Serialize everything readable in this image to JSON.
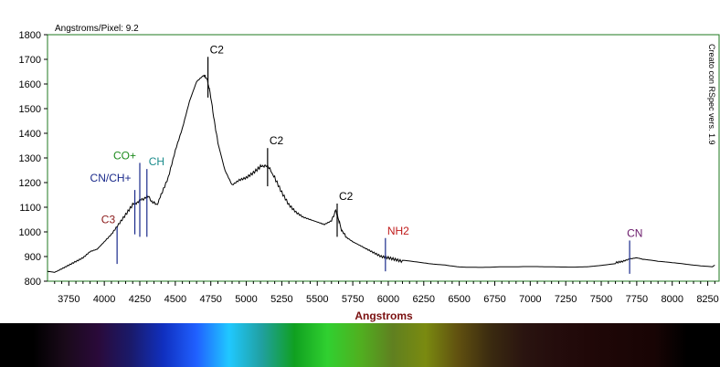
{
  "header": {
    "dispersion": "Angstroms/Pixel: 9.2"
  },
  "credit": "Creato con RSpec vers. 1.9",
  "colors": {
    "frame": "#1f7a1f",
    "trace": "#000000",
    "axis_title": "#7a1010"
  },
  "chart_data": {
    "type": "line",
    "title": "",
    "xlabel": "Angstroms",
    "ylabel": "",
    "xlim": [
      3600,
      8330
    ],
    "ylim": [
      800,
      1800
    ],
    "x_ticks": [
      3750,
      4000,
      4250,
      4500,
      4750,
      5000,
      5250,
      5500,
      5750,
      6000,
      6250,
      6500,
      6750,
      7000,
      7250,
      7500,
      7750,
      8000,
      8250
    ],
    "y_ticks": [
      800,
      900,
      1000,
      1100,
      1200,
      1300,
      1400,
      1500,
      1600,
      1700,
      1800
    ],
    "grid": false,
    "series": [
      {
        "x": [
          3600,
          3650,
          3700,
          3750,
          3800,
          3850,
          3900,
          3950,
          4000,
          4050,
          4100,
          4150,
          4200,
          4230,
          4260,
          4290,
          4310,
          4340,
          4370,
          4400,
          4450,
          4500,
          4550,
          4600,
          4650,
          4700,
          4720,
          4740,
          4770,
          4800,
          4850,
          4900,
          4950,
          5000,
          5050,
          5100,
          5130,
          5160,
          5200,
          5250,
          5300,
          5350,
          5400,
          5450,
          5500,
          5550,
          5600,
          5630,
          5650,
          5670,
          5700,
          5750,
          5800,
          5850,
          5900,
          5950,
          6000,
          6050,
          6100,
          6200,
          6300,
          6400,
          6500,
          6600,
          6700,
          6800,
          6900,
          7000,
          7100,
          7200,
          7300,
          7400,
          7500,
          7600,
          7650,
          7700,
          7750,
          7800,
          7900,
          8000,
          8100,
          8200,
          8300
        ],
        "y": [
          840,
          836,
          850,
          865,
          880,
          895,
          920,
          930,
          960,
          990,
          1030,
          1070,
          1110,
          1120,
          1130,
          1140,
          1145,
          1120,
          1110,
          1150,
          1220,
          1330,
          1420,
          1530,
          1610,
          1635,
          1625,
          1580,
          1470,
          1360,
          1250,
          1190,
          1210,
          1220,
          1240,
          1265,
          1270,
          1260,
          1220,
          1160,
          1110,
          1080,
          1060,
          1050,
          1040,
          1030,
          1045,
          1090,
          1050,
          1010,
          980,
          960,
          945,
          930,
          915,
          900,
          895,
          888,
          880,
          875,
          870,
          868,
          862,
          860,
          858,
          858,
          856,
          857,
          858,
          860,
          862,
          865,
          870,
          875,
          880,
          890,
          895,
          888,
          880,
          876,
          872,
          868,
          865
        ]
      }
    ],
    "annotations": [
      {
        "label": "C3",
        "x": 4090,
        "color": "#8b1a1a",
        "y_from": 870,
        "y_to": 1020
      },
      {
        "label": "CN/CH+",
        "x": 4215,
        "color": "#1a2a8b",
        "y_from": 990,
        "y_to": 1170
      },
      {
        "label": "CO+",
        "x": 4250,
        "color": "#1e8b1e",
        "y_from": 980,
        "y_to": 1280
      },
      {
        "label": "CH",
        "x": 4300,
        "color": "#1a8b8b",
        "y_from": 980,
        "y_to": 1255
      },
      {
        "label": "C2",
        "x": 4730,
        "color": "#000000",
        "y_from": 1545,
        "y_to": 1710
      },
      {
        "label": "C2",
        "x": 5150,
        "color": "#000000",
        "y_from": 1185,
        "y_to": 1340
      },
      {
        "label": "C2",
        "x": 5640,
        "color": "#000000",
        "y_from": 980,
        "y_to": 1115
      },
      {
        "label": "NH2",
        "x": 5980,
        "color": "#c01a1a",
        "y_from": 840,
        "y_to": 975
      },
      {
        "label": "CN",
        "x": 7700,
        "color": "#6b1a6b",
        "y_from": 830,
        "y_to": 965
      }
    ],
    "spectrum_strip": {
      "colors": [
        "#000000",
        "#000000",
        "#1a0a1a",
        "#2a0a3a",
        "#1a1a6a",
        "#1030c0",
        "#2060ff",
        "#20c8ff",
        "#20a0a0",
        "#10a020",
        "#30d030",
        "#50b020",
        "#608020",
        "#7a8a10",
        "#605010",
        "#3a2a10",
        "#2a1410",
        "#240c0c",
        "#200808",
        "#1c0606",
        "#180404",
        "#000000",
        "#000000"
      ]
    }
  }
}
